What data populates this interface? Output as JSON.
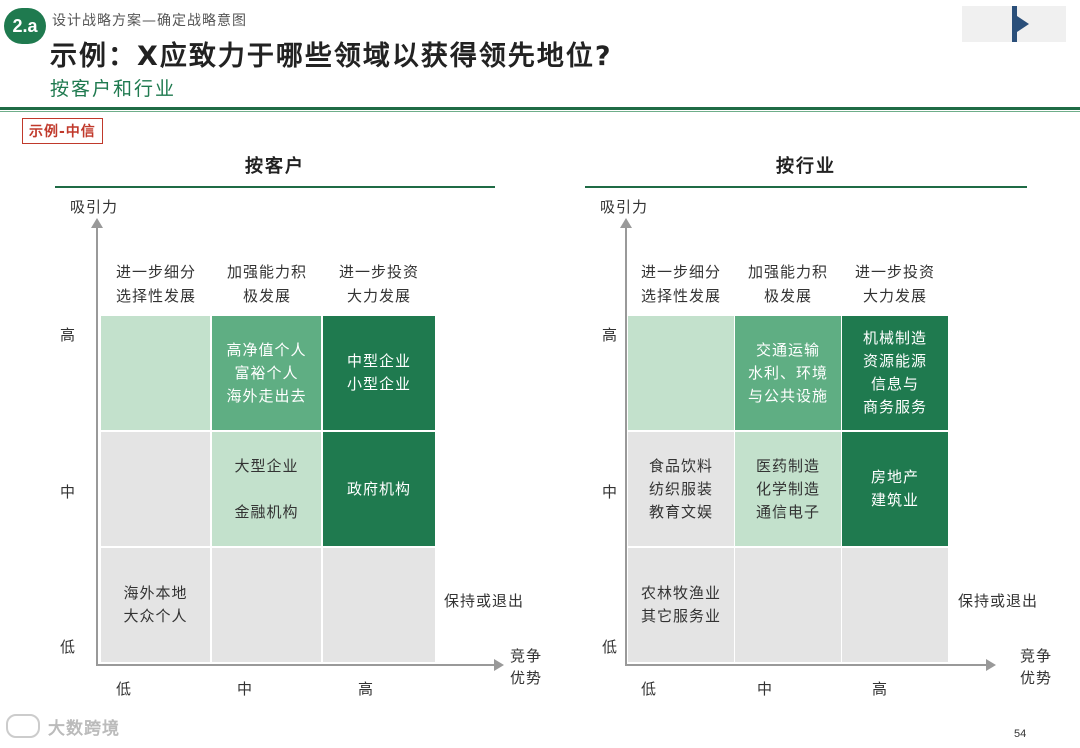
{
  "header": {
    "badge": "2.a",
    "breadcrumb": "设计战略方案—确定战略意图",
    "title": "示例：X应致力于哪些领域以获得领先地位?",
    "subtitle": "按客户和行业",
    "example_tag": "示例-中信"
  },
  "colors": {
    "grey": "#e4e4e4",
    "light": "#c3e1cc",
    "mid": "#5fae83",
    "dark": "#1f7a4f"
  },
  "left": {
    "title": "按客户",
    "y_axis": "吸引力",
    "x_axis": "竞争\n优势",
    "y_levels": [
      "高",
      "中",
      "低"
    ],
    "x_levels": [
      "低",
      "中",
      "高"
    ],
    "col_headers": [
      "进一步细分\n选择性发展",
      "加强能力积\n极发展",
      "进一步投资\n大力发展"
    ],
    "exit_label": "保持或退出",
    "rows": [
      [
        "",
        "高净值个人\n富裕个人\n海外走出去",
        "中型企业\n小型企业"
      ],
      [
        "",
        "大型企业\n\n金融机构",
        "政府机构"
      ],
      [
        "海外本地\n大众个人",
        "",
        ""
      ]
    ]
  },
  "right": {
    "title": "按行业",
    "y_axis": "吸引力",
    "x_axis": "竞争\n优势",
    "y_levels": [
      "高",
      "中",
      "低"
    ],
    "x_levels": [
      "低",
      "中",
      "高"
    ],
    "col_headers": [
      "进一步细分\n选择性发展",
      "加强能力积\n极发展",
      "进一步投资\n大力发展"
    ],
    "exit_label": "保持或退出",
    "rows": [
      [
        "",
        "交通运输\n水利、环境\n与公共设施",
        "机械制造\n资源能源\n信息与\n商务服务"
      ],
      [
        "食品饮料\n纺织服装\n教育文娱",
        "医药制造\n化学制造\n通信电子",
        "房地产\n建筑业"
      ],
      [
        "农林牧渔业\n其它服务业",
        "",
        ""
      ]
    ]
  },
  "watermark": "大数跨境",
  "page_number": "54"
}
